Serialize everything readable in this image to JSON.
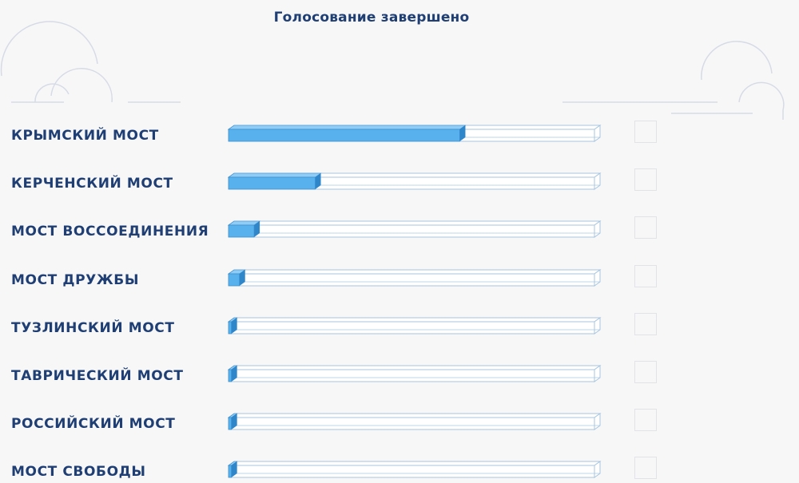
{
  "header": {
    "title": "Голосование завершено"
  },
  "poll": {
    "options": [
      {
        "label": "КРЫМСКИЙ МОСТ",
        "share": 0.632
      },
      {
        "label": "КЕРЧЕНСКИЙ МОСТ",
        "share": 0.237
      },
      {
        "label": "МОСТ ВОССОЕДИНЕНИЯ",
        "share": 0.07
      },
      {
        "label": "МОСТ ДРУЖБЫ",
        "share": 0.03
      },
      {
        "label": "ТУЗЛИНСКИЙ МОСТ",
        "share": 0.008
      },
      {
        "label": "ТАВРИЧЕСКИЙ МОСТ",
        "share": 0.008
      },
      {
        "label": "РОССИЙСКИЙ МОСТ",
        "share": 0.008
      },
      {
        "label": "МОСТ СВОБОДЫ",
        "share": 0.008
      }
    ]
  },
  "colors": {
    "fill_front": "#58b1ec",
    "fill_top": "#8fcdf6",
    "fill_side": "#2f86c9",
    "bar_outline": "#a9c6e0",
    "text": "#1f3f74",
    "cloud_line": "#d6dbe6"
  }
}
